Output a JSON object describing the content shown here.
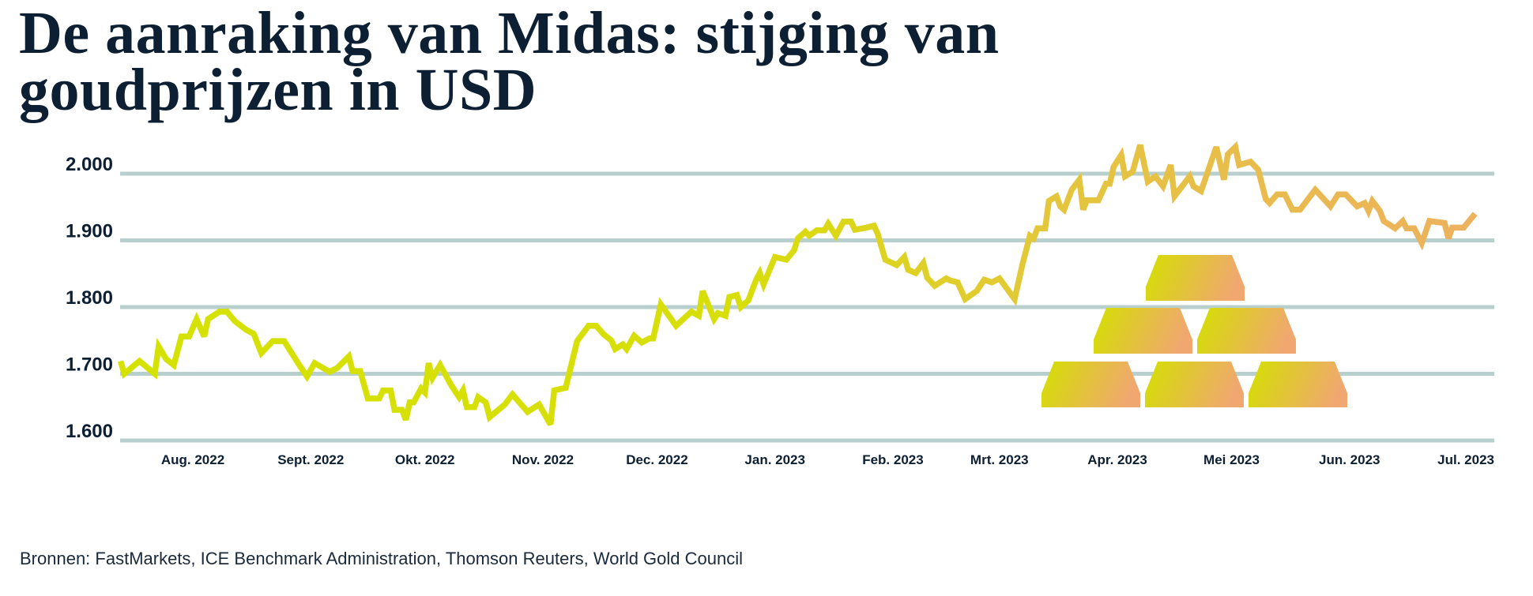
{
  "title": {
    "line1": "De aanraking van Midas: stijging van",
    "line2": "goudprijzen in USD"
  },
  "source": "Bronnen: FastMarkets, ICE Benchmark Administration, Thomson Reuters, World Gold Council",
  "colors": {
    "text": "#0d2033",
    "grid": "#b7d0ce",
    "line_start": "#d5e200",
    "line_end": "#eeb060",
    "bar_left": "#d4e000",
    "bar_right": "#f0a870"
  },
  "decoration": {
    "icon": "gold-bars-pyramid-icon",
    "count": 6
  },
  "chart_data": {
    "type": "line",
    "title": "De aanraking van Midas: stijging van goudprijzen in USD",
    "xlabel": "",
    "ylabel": "",
    "ylim": [
      1600,
      2000
    ],
    "y_ticks": [
      {
        "value": 2000,
        "label": "2.000"
      },
      {
        "value": 1900,
        "label": "1.900"
      },
      {
        "value": 1800,
        "label": "1.800"
      },
      {
        "value": 1700,
        "label": "1.700"
      },
      {
        "value": 1600,
        "label": "1.600"
      }
    ],
    "x_ticks": [
      {
        "date": "2022-08-01",
        "label": "Aug. 2022"
      },
      {
        "date": "2022-09-01",
        "label": "Sept. 2022"
      },
      {
        "date": "2022-10-01",
        "label": "Okt. 2022"
      },
      {
        "date": "2022-11-01",
        "label": "Nov. 2022"
      },
      {
        "date": "2022-12-01",
        "label": "Dec. 2022"
      },
      {
        "date": "2023-01-01",
        "label": "Jan. 2023"
      },
      {
        "date": "2023-02-01",
        "label": "Feb. 2023"
      },
      {
        "date": "2023-03-01",
        "label": "Mrt. 2023"
      },
      {
        "date": "2023-04-01",
        "label": "Apr. 2023"
      },
      {
        "date": "2023-05-01",
        "label": "Mei 2023"
      },
      {
        "date": "2023-06-01",
        "label": "Jun. 2023"
      },
      {
        "date": "2023-07-01",
        "label": "Jul. 2023"
      }
    ],
    "grid": true,
    "legend": "none",
    "series": [
      {
        "points": [
          [
            "2022-07-13",
            1719
          ],
          [
            "2022-07-14",
            1700
          ],
          [
            "2022-07-18",
            1719
          ],
          [
            "2022-07-22",
            1700
          ],
          [
            "2022-07-23",
            1741
          ],
          [
            "2022-07-25",
            1722
          ],
          [
            "2022-07-27",
            1713
          ],
          [
            "2022-07-29",
            1756
          ],
          [
            "2022-07-31",
            1756
          ],
          [
            "2022-08-02",
            1782
          ],
          [
            "2022-08-04",
            1756
          ],
          [
            "2022-08-05",
            1782
          ],
          [
            "2022-08-08",
            1793
          ],
          [
            "2022-08-10",
            1793
          ],
          [
            "2022-08-12",
            1779
          ],
          [
            "2022-08-15",
            1766
          ],
          [
            "2022-08-17",
            1760
          ],
          [
            "2022-08-19",
            1731
          ],
          [
            "2022-08-22",
            1749
          ],
          [
            "2022-08-25",
            1749
          ],
          [
            "2022-08-29",
            1713
          ],
          [
            "2022-08-31",
            1696
          ],
          [
            "2022-09-02",
            1716
          ],
          [
            "2022-09-06",
            1703
          ],
          [
            "2022-09-08",
            1709
          ],
          [
            "2022-09-11",
            1726
          ],
          [
            "2022-09-12",
            1704
          ],
          [
            "2022-09-14",
            1704
          ],
          [
            "2022-09-16",
            1663
          ],
          [
            "2022-09-19",
            1663
          ],
          [
            "2022-09-20",
            1675
          ],
          [
            "2022-09-22",
            1675
          ],
          [
            "2022-09-23",
            1646
          ],
          [
            "2022-09-25",
            1646
          ],
          [
            "2022-09-26",
            1631
          ],
          [
            "2022-09-27",
            1657
          ],
          [
            "2022-09-28",
            1657
          ],
          [
            "2022-09-30",
            1678
          ],
          [
            "2022-10-01",
            1672
          ],
          [
            "2022-10-02",
            1716
          ],
          [
            "2022-10-03",
            1694
          ],
          [
            "2022-10-05",
            1713
          ],
          [
            "2022-10-08",
            1682
          ],
          [
            "2022-10-10",
            1665
          ],
          [
            "2022-10-11",
            1675
          ],
          [
            "2022-10-12",
            1650
          ],
          [
            "2022-10-14",
            1650
          ],
          [
            "2022-10-15",
            1665
          ],
          [
            "2022-10-17",
            1657
          ],
          [
            "2022-10-18",
            1635
          ],
          [
            "2022-10-22",
            1654
          ],
          [
            "2022-10-24",
            1669
          ],
          [
            "2022-10-28",
            1643
          ],
          [
            "2022-10-31",
            1654
          ],
          [
            "2022-11-03",
            1624
          ],
          [
            "2022-11-04",
            1675
          ],
          [
            "2022-11-07",
            1679
          ],
          [
            "2022-11-10",
            1749
          ],
          [
            "2022-11-13",
            1772
          ],
          [
            "2022-11-15",
            1772
          ],
          [
            "2022-11-17",
            1759
          ],
          [
            "2022-11-19",
            1750
          ],
          [
            "2022-11-20",
            1737
          ],
          [
            "2022-11-22",
            1744
          ],
          [
            "2022-11-23",
            1737
          ],
          [
            "2022-11-25",
            1757
          ],
          [
            "2022-11-27",
            1747
          ],
          [
            "2022-11-29",
            1753
          ],
          [
            "2022-11-30",
            1753
          ],
          [
            "2022-12-02",
            1804
          ],
          [
            "2022-12-06",
            1772
          ],
          [
            "2022-12-10",
            1793
          ],
          [
            "2022-12-12",
            1787
          ],
          [
            "2022-12-13",
            1824
          ],
          [
            "2022-12-16",
            1782
          ],
          [
            "2022-12-17",
            1791
          ],
          [
            "2022-12-19",
            1787
          ],
          [
            "2022-12-20",
            1815
          ],
          [
            "2022-12-22",
            1818
          ],
          [
            "2022-12-23",
            1800
          ],
          [
            "2022-12-25",
            1810
          ],
          [
            "2022-12-27",
            1840
          ],
          [
            "2022-12-28",
            1851
          ],
          [
            "2022-12-29",
            1834
          ],
          [
            "2023-01-01",
            1875
          ],
          [
            "2023-01-04",
            1871
          ],
          [
            "2023-01-06",
            1885
          ],
          [
            "2023-01-07",
            1903
          ],
          [
            "2023-01-09",
            1913
          ],
          [
            "2023-01-10",
            1907
          ],
          [
            "2023-01-12",
            1915
          ],
          [
            "2023-01-14",
            1915
          ],
          [
            "2023-01-15",
            1925
          ],
          [
            "2023-01-17",
            1907
          ],
          [
            "2023-01-19",
            1928
          ],
          [
            "2023-01-21",
            1928
          ],
          [
            "2023-01-22",
            1916
          ],
          [
            "2023-01-25",
            1919
          ],
          [
            "2023-01-27",
            1922
          ],
          [
            "2023-01-28",
            1910
          ],
          [
            "2023-01-30",
            1871
          ],
          [
            "2023-02-02",
            1863
          ],
          [
            "2023-02-04",
            1875
          ],
          [
            "2023-02-05",
            1856
          ],
          [
            "2023-02-07",
            1851
          ],
          [
            "2023-02-09",
            1866
          ],
          [
            "2023-02-10",
            1844
          ],
          [
            "2023-02-12",
            1832
          ],
          [
            "2023-02-15",
            1843
          ],
          [
            "2023-02-16",
            1840
          ],
          [
            "2023-02-18",
            1837
          ],
          [
            "2023-02-20",
            1812
          ],
          [
            "2023-02-23",
            1824
          ],
          [
            "2023-02-25",
            1841
          ],
          [
            "2023-02-27",
            1837
          ],
          [
            "2023-03-01",
            1843
          ],
          [
            "2023-03-05",
            1812
          ],
          [
            "2023-03-07",
            1863
          ],
          [
            "2023-03-09",
            1907
          ],
          [
            "2023-03-10",
            1903
          ],
          [
            "2023-03-11",
            1918
          ],
          [
            "2023-03-13",
            1918
          ],
          [
            "2023-03-14",
            1959
          ],
          [
            "2023-03-16",
            1966
          ],
          [
            "2023-03-17",
            1951
          ],
          [
            "2023-03-18",
            1946
          ],
          [
            "2023-03-20",
            1976
          ],
          [
            "2023-03-22",
            1991
          ],
          [
            "2023-03-23",
            1946
          ],
          [
            "2023-03-24",
            1960
          ],
          [
            "2023-03-27",
            1960
          ],
          [
            "2023-03-29",
            1985
          ],
          [
            "2023-03-30",
            1985
          ],
          [
            "2023-03-31",
            2010
          ],
          [
            "2023-04-02",
            2028
          ],
          [
            "2023-04-03",
            1996
          ],
          [
            "2023-04-05",
            2003
          ],
          [
            "2023-04-07",
            2043
          ],
          [
            "2023-04-09",
            1988
          ],
          [
            "2023-04-11",
            1996
          ],
          [
            "2023-04-13",
            1981
          ],
          [
            "2023-04-15",
            2013
          ],
          [
            "2023-04-16",
            1966
          ],
          [
            "2023-04-20",
            1996
          ],
          [
            "2023-04-21",
            1981
          ],
          [
            "2023-04-23",
            1974
          ],
          [
            "2023-04-27",
            2040
          ],
          [
            "2023-04-29",
            1991
          ],
          [
            "2023-04-30",
            2029
          ],
          [
            "2023-05-02",
            2040
          ],
          [
            "2023-05-03",
            2013
          ],
          [
            "2023-05-06",
            2018
          ],
          [
            "2023-05-08",
            2006
          ],
          [
            "2023-05-10",
            1962
          ],
          [
            "2023-05-11",
            1956
          ],
          [
            "2023-05-13",
            1969
          ],
          [
            "2023-05-15",
            1969
          ],
          [
            "2023-05-17",
            1946
          ],
          [
            "2023-05-19",
            1946
          ],
          [
            "2023-05-23",
            1976
          ],
          [
            "2023-05-27",
            1951
          ],
          [
            "2023-05-29",
            1969
          ],
          [
            "2023-05-31",
            1969
          ],
          [
            "2023-06-03",
            1951
          ],
          [
            "2023-06-05",
            1956
          ],
          [
            "2023-06-06",
            1944
          ],
          [
            "2023-06-07",
            1959
          ],
          [
            "2023-06-09",
            1944
          ],
          [
            "2023-06-10",
            1929
          ],
          [
            "2023-06-13",
            1918
          ],
          [
            "2023-06-15",
            1929
          ],
          [
            "2023-06-16",
            1918
          ],
          [
            "2023-06-18",
            1918
          ],
          [
            "2023-06-20",
            1896
          ],
          [
            "2023-06-22",
            1929
          ],
          [
            "2023-06-26",
            1926
          ],
          [
            "2023-06-27",
            1903
          ],
          [
            "2023-06-28",
            1919
          ],
          [
            "2023-07-01",
            1919
          ],
          [
            "2023-07-04",
            1940
          ]
        ]
      }
    ]
  }
}
